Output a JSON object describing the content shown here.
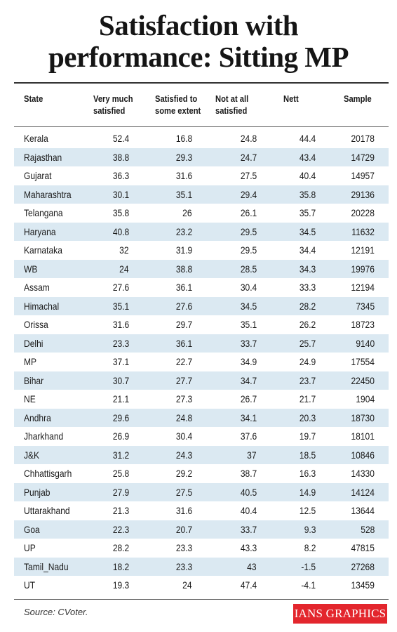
{
  "title_lines": [
    "Satisfaction with",
    "performance: Sitting MP"
  ],
  "source": "Source: CVoter.",
  "logo_text": "IANS GRAPHICS",
  "chart_data": {
    "type": "table",
    "title": "Satisfaction with performance: Sitting MP",
    "columns": [
      "State",
      "Very much\nsatisfied",
      "Satisfied to\nsome extent",
      "Not at all\nsatisfied",
      "Nett",
      "Sample"
    ],
    "rows": [
      [
        "Kerala",
        "52.4",
        "16.8",
        "24.8",
        "44.4",
        "20178"
      ],
      [
        "Rajasthan",
        "38.8",
        "29.3",
        "24.7",
        "43.4",
        "14729"
      ],
      [
        "Gujarat",
        "36.3",
        "31.6",
        "27.5",
        "40.4",
        "14957"
      ],
      [
        "Maharashtra",
        "30.1",
        "35.1",
        "29.4",
        "35.8",
        "29136"
      ],
      [
        "Telangana",
        "35.8",
        "26",
        "26.1",
        "35.7",
        "20228"
      ],
      [
        "Haryana",
        "40.8",
        "23.2",
        "29.5",
        "34.5",
        "11632"
      ],
      [
        "Karnataka",
        "32",
        "31.9",
        "29.5",
        "34.4",
        "12191"
      ],
      [
        "WB",
        "24",
        "38.8",
        "28.5",
        "34.3",
        "19976"
      ],
      [
        "Assam",
        "27.6",
        "36.1",
        "30.4",
        "33.3",
        "12194"
      ],
      [
        "Himachal",
        "35.1",
        "27.6",
        "34.5",
        "28.2",
        "7345"
      ],
      [
        "Orissa",
        "31.6",
        "29.7",
        "35.1",
        "26.2",
        "18723"
      ],
      [
        "Delhi",
        "23.3",
        "36.1",
        "33.7",
        "25.7",
        "9140"
      ],
      [
        "MP",
        "37.1",
        "22.7",
        "34.9",
        "24.9",
        "17554"
      ],
      [
        "Bihar",
        "30.7",
        "27.7",
        "34.7",
        "23.7",
        "22450"
      ],
      [
        "NE",
        "21.1",
        "27.3",
        "26.7",
        "21.7",
        "1904"
      ],
      [
        "Andhra",
        "29.6",
        "24.8",
        "34.1",
        "20.3",
        "18730"
      ],
      [
        "Jharkhand",
        "26.9",
        "30.4",
        "37.6",
        "19.7",
        "18101"
      ],
      [
        "J&K",
        "31.2",
        "24.3",
        "37",
        "18.5",
        "10846"
      ],
      [
        "Chhattisgarh",
        "25.8",
        "29.2",
        "38.7",
        "16.3",
        "14330"
      ],
      [
        "Punjab",
        "27.9",
        "27.5",
        "40.5",
        "14.9",
        "14124"
      ],
      [
        "Uttarakhand",
        "21.3",
        "31.6",
        "40.4",
        "12.5",
        "13644"
      ],
      [
        "Goa",
        "22.3",
        "20.7",
        "33.7",
        "9.3",
        "528"
      ],
      [
        "UP",
        "28.2",
        "23.3",
        "43.3",
        "8.2",
        "47815"
      ],
      [
        "Tamil_Nadu",
        "18.2",
        "23.3",
        "43",
        "-1.5",
        "27268"
      ],
      [
        "UT",
        "19.3",
        "24",
        "47.4",
        "-4.1",
        "13459"
      ]
    ]
  }
}
